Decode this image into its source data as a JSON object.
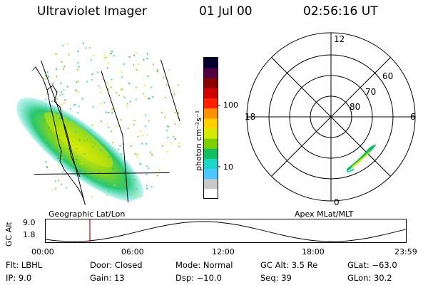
{
  "header": {
    "instrument": "Ultraviolet Imager",
    "date": "01 Jul 00",
    "time": "02:56:16 UT"
  },
  "geo_panel": {
    "label": "Geographic Lat/Lon"
  },
  "colorbar": {
    "unit_label": "photon cm⁻²s⁻¹",
    "ticks": [
      "100",
      "10"
    ],
    "colors": [
      "#ffffff",
      "#c8c8c8",
      "#49c8ff",
      "#1bd7c8",
      "#11c060",
      "#7cd000",
      "#d6ea00",
      "#ffd000",
      "#ff9000",
      "#ff2000",
      "#d00000",
      "#8a0000",
      "#500040",
      "#000030"
    ]
  },
  "polar_panel": {
    "label": "Apex MLat/MLT",
    "lat_labels": [
      "60",
      "70",
      "80"
    ],
    "mlt_labels": [
      "12",
      "18",
      "6",
      "0"
    ]
  },
  "altitude_plot": {
    "ylabel": "GC Alt",
    "yticks": [
      "9.0",
      "1.8"
    ],
    "xticks": [
      "00:00",
      "06:00",
      "12:00",
      "18:00",
      "23:59"
    ],
    "marker_color": "#cc0000",
    "marker_time_h": 2.94
  },
  "footer": {
    "col1": [
      "Flt: LBHL",
      "IP:  9.0"
    ],
    "col2": [
      "Door: Closed",
      "Gain: 13"
    ],
    "col3": [
      "Mode: Normal",
      "Dsp:  −10.0"
    ],
    "col4": [
      "GC Alt: 3.5 Re",
      "Seq: 39"
    ],
    "col5": [
      "GLat: −63.0",
      "GLon:  30.2"
    ]
  }
}
